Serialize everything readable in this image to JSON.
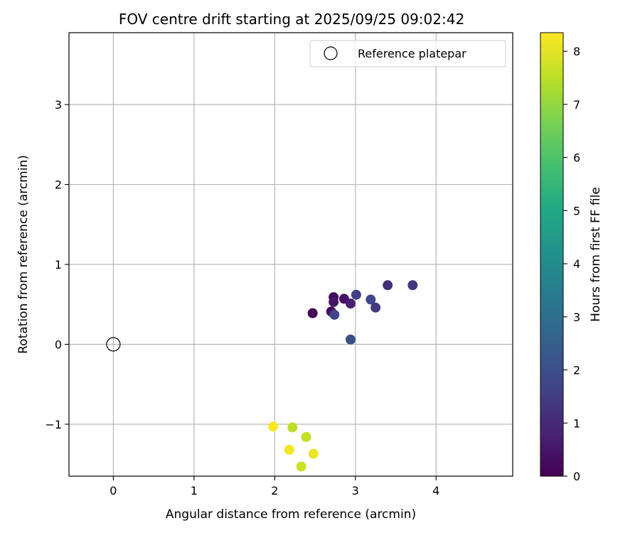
{
  "chart_data": {
    "type": "scatter",
    "title": "FOV centre drift starting at 2025/09/25 09:02:42",
    "xlabel": "Angular distance from reference (arcmin)",
    "ylabel": "Rotation from reference (arcmin)",
    "xlim": [
      -0.55,
      4.95
    ],
    "ylim": [
      -1.65,
      3.9
    ],
    "xticks": [
      0,
      1,
      2,
      3,
      4
    ],
    "yticks": [
      -1,
      0,
      1,
      2,
      3
    ],
    "grid": true,
    "legend": {
      "placement": "top-right",
      "entries": [
        "Reference platepar"
      ]
    },
    "reference_point": {
      "x": 0,
      "y": 0
    },
    "colorbar": {
      "label": "Hours from first FF file",
      "min": 0,
      "max": 8.35,
      "ticks": [
        0,
        1,
        2,
        3,
        4,
        5,
        6,
        7,
        8
      ],
      "colormap": "viridis"
    },
    "points": [
      {
        "x": 2.47,
        "y": 0.39,
        "hours": 0.1
      },
      {
        "x": 2.7,
        "y": 0.41,
        "hours": 0.3
      },
      {
        "x": 2.73,
        "y": 0.59,
        "hours": 0.2
      },
      {
        "x": 2.73,
        "y": 0.53,
        "hours": 0.5
      },
      {
        "x": 2.86,
        "y": 0.57,
        "hours": 0.4
      },
      {
        "x": 2.94,
        "y": 0.51,
        "hours": 0.7
      },
      {
        "x": 2.74,
        "y": 0.37,
        "hours": 1.7
      },
      {
        "x": 3.01,
        "y": 0.62,
        "hours": 1.6
      },
      {
        "x": 3.19,
        "y": 0.56,
        "hours": 1.8
      },
      {
        "x": 3.25,
        "y": 0.46,
        "hours": 1.4
      },
      {
        "x": 3.4,
        "y": 0.74,
        "hours": 1.1
      },
      {
        "x": 3.71,
        "y": 0.74,
        "hours": 1.3
      },
      {
        "x": 2.94,
        "y": 0.06,
        "hours": 2.0
      },
      {
        "x": 1.98,
        "y": -1.03,
        "hours": 8.3
      },
      {
        "x": 2.22,
        "y": -1.04,
        "hours": 7.5
      },
      {
        "x": 2.39,
        "y": -1.16,
        "hours": 7.6
      },
      {
        "x": 2.18,
        "y": -1.32,
        "hours": 8.2
      },
      {
        "x": 2.48,
        "y": -1.37,
        "hours": 8.1
      },
      {
        "x": 2.33,
        "y": -1.53,
        "hours": 7.7
      }
    ]
  }
}
